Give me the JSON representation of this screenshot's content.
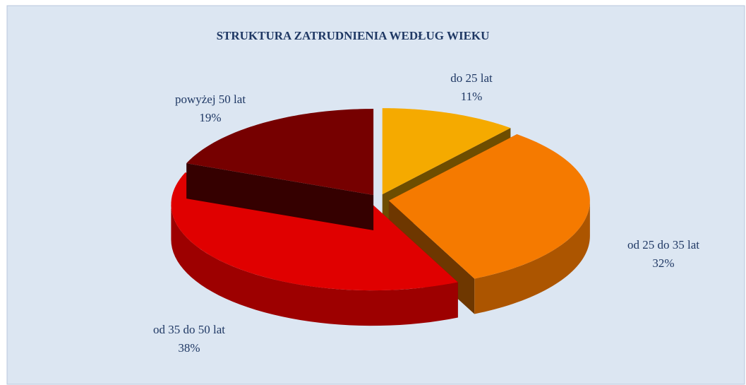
{
  "chart_data": {
    "type": "pie3d",
    "title": "STRUKTURA ZATRUDNIENIA WEDŁUG WIEKU",
    "categories": [
      "do 25 lat",
      "od 25 do 35 lat",
      "od 35 do 50 lat",
      "powyżej 50 lat"
    ],
    "values": [
      11,
      32,
      38,
      19
    ],
    "value_labels": [
      "11%",
      "32%",
      "38%",
      "19%"
    ],
    "colors": [
      "#f5aa00",
      "#f57a00",
      "#e00000",
      "#760000"
    ]
  }
}
